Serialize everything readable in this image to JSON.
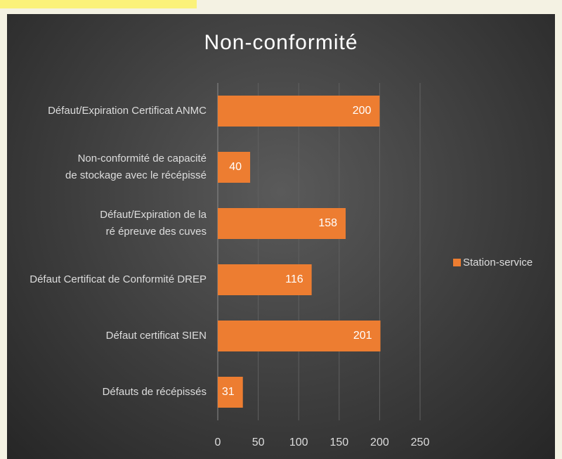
{
  "chart_data": {
    "type": "bar",
    "orientation": "horizontal",
    "title": "Non-conformité",
    "categories": [
      "Défaut/Expiration Certificat ANMC",
      "Non-conformité de capacité de stockage avec le récépissé",
      "Défaut/Expiration de la ré épreuve des cuves",
      "Défaut Certificat de Conformité DREP",
      "Défaut certificat SIEN",
      "Défauts de récépissés"
    ],
    "series": [
      {
        "name": "Station-service",
        "color": "#ed7d31",
        "values": [
          200,
          40,
          158,
          116,
          201,
          31
        ]
      }
    ],
    "xlim": [
      0,
      250
    ],
    "xticks": [
      0,
      50,
      100,
      150,
      200,
      250
    ],
    "grid": true,
    "legend": "right",
    "data_labels": true
  }
}
